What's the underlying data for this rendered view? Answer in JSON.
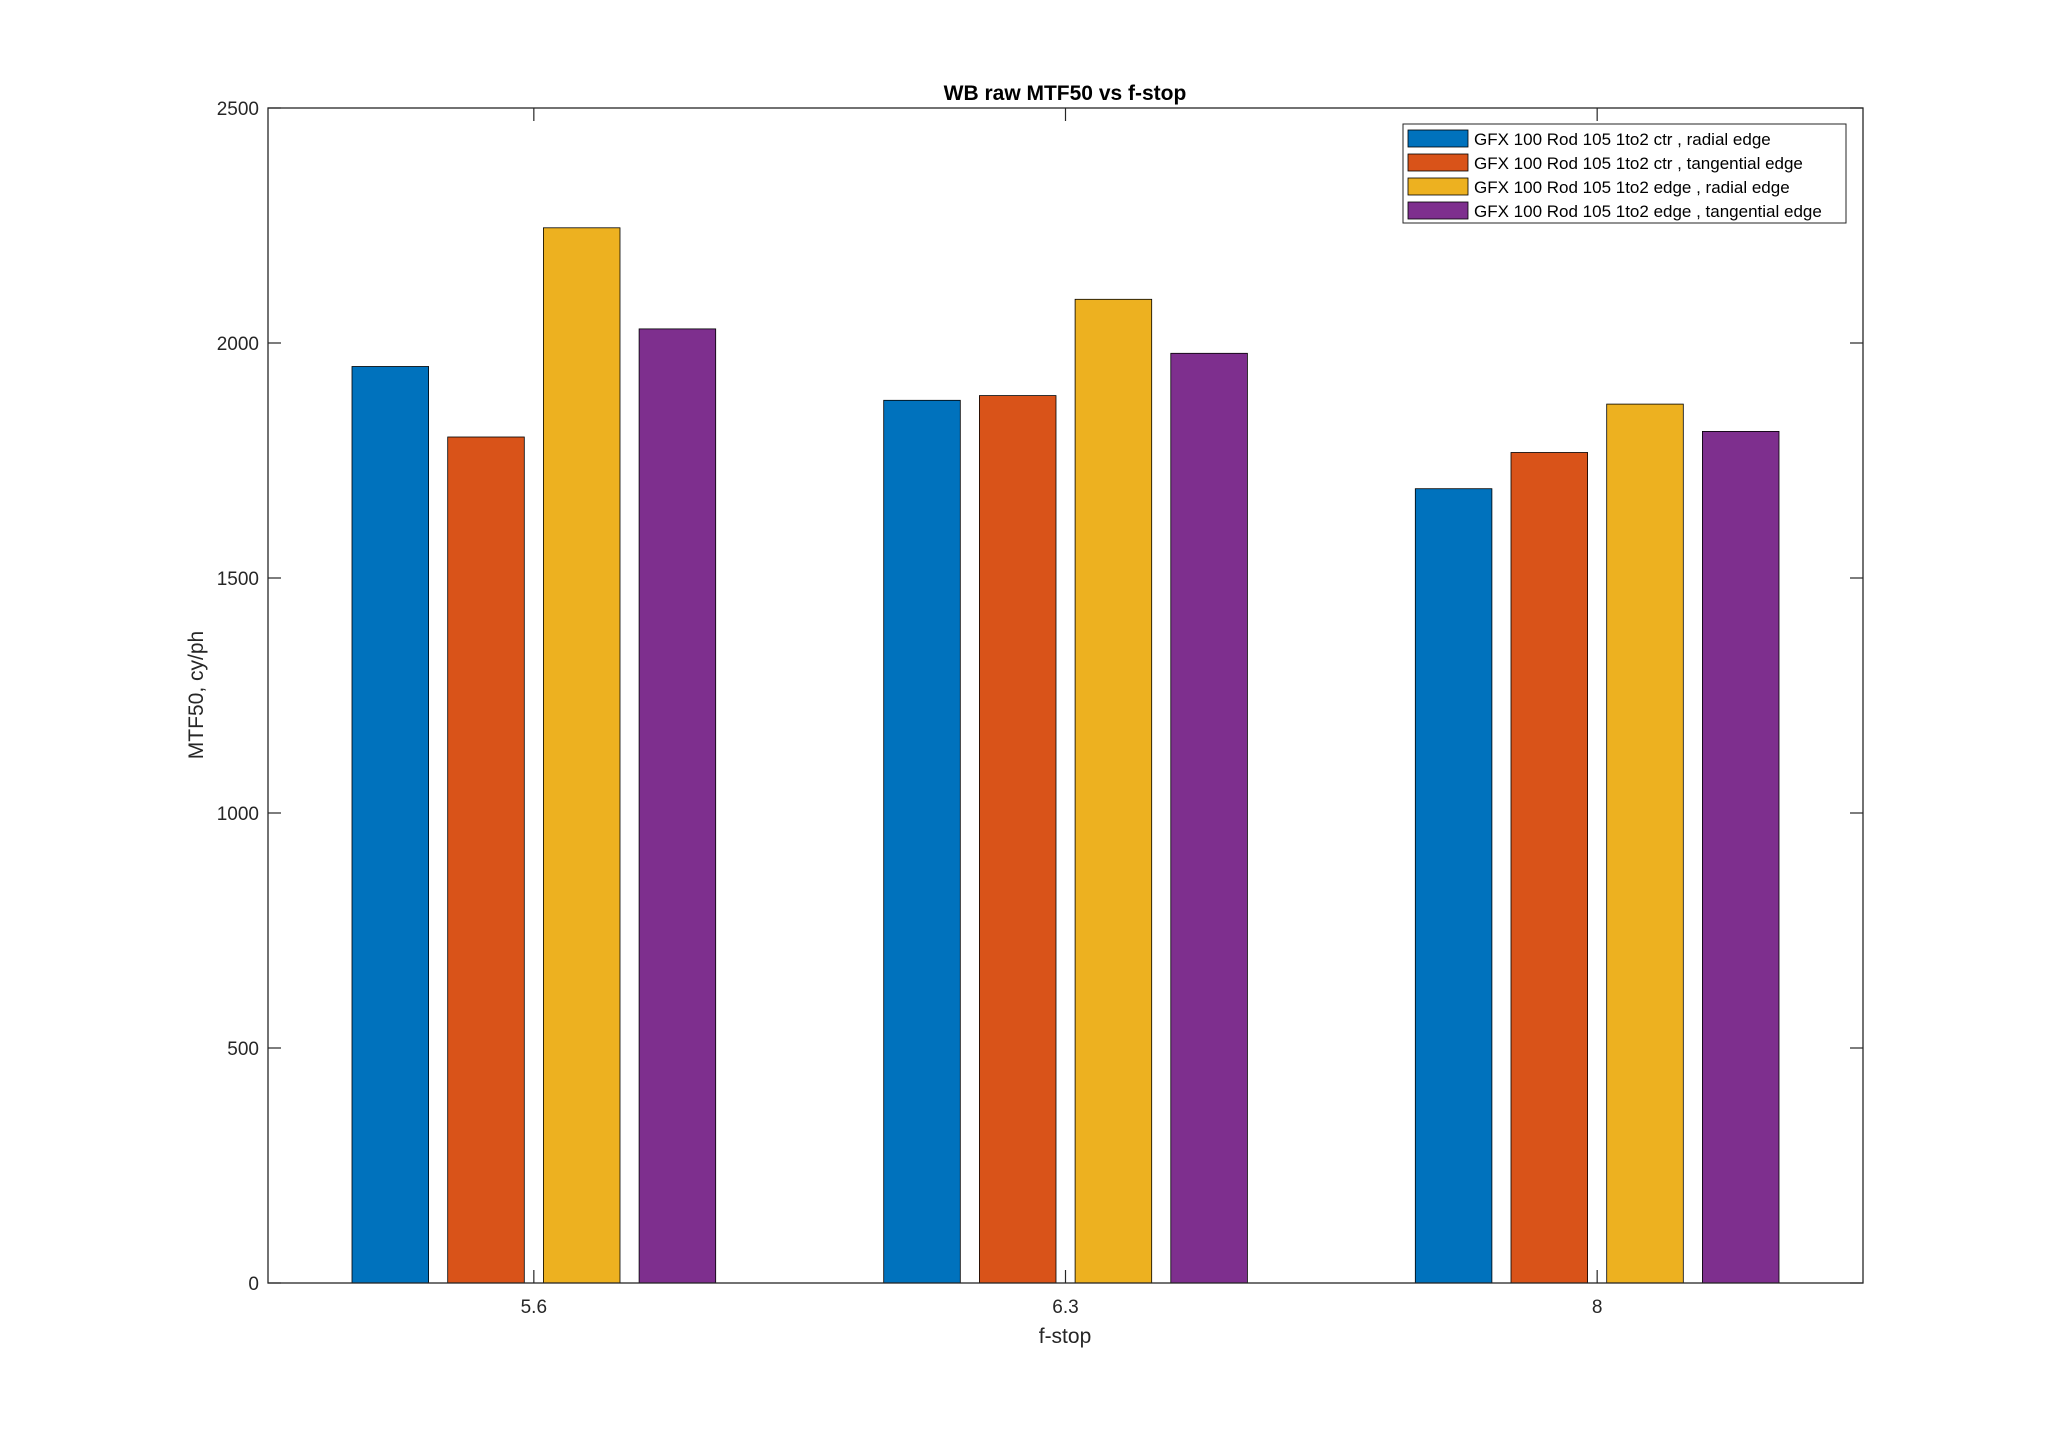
{
  "chart_data": {
    "type": "bar",
    "title": "WB raw MTF50 vs f-stop",
    "xlabel": "f-stop",
    "ylabel": "MTF50, cy/ph",
    "categories": [
      "5.6",
      "6.3",
      "8"
    ],
    "ylim": [
      0,
      2500
    ],
    "yticks": [
      0,
      500,
      1000,
      1500,
      2000,
      2500
    ],
    "grid": false,
    "legend_position": "top-right",
    "series": [
      {
        "name": "GFX 100 Rod 105 1to2 ctr , radial edge",
        "color": "#0072BD",
        "values": [
          1950,
          1878,
          1690
        ]
      },
      {
        "name": "GFX 100 Rod 105 1to2 ctr , tangential edge",
        "color": "#D95319",
        "values": [
          1800,
          1888,
          1767
        ]
      },
      {
        "name": "GFX 100 Rod 105 1to2 edge , radial edge",
        "color": "#EDB120",
        "values": [
          2245,
          2093,
          1870
        ]
      },
      {
        "name": "GFX 100 Rod 105 1to2 edge , tangential edge",
        "color": "#7E2F8E",
        "values": [
          2030,
          1978,
          1812
        ]
      }
    ]
  }
}
